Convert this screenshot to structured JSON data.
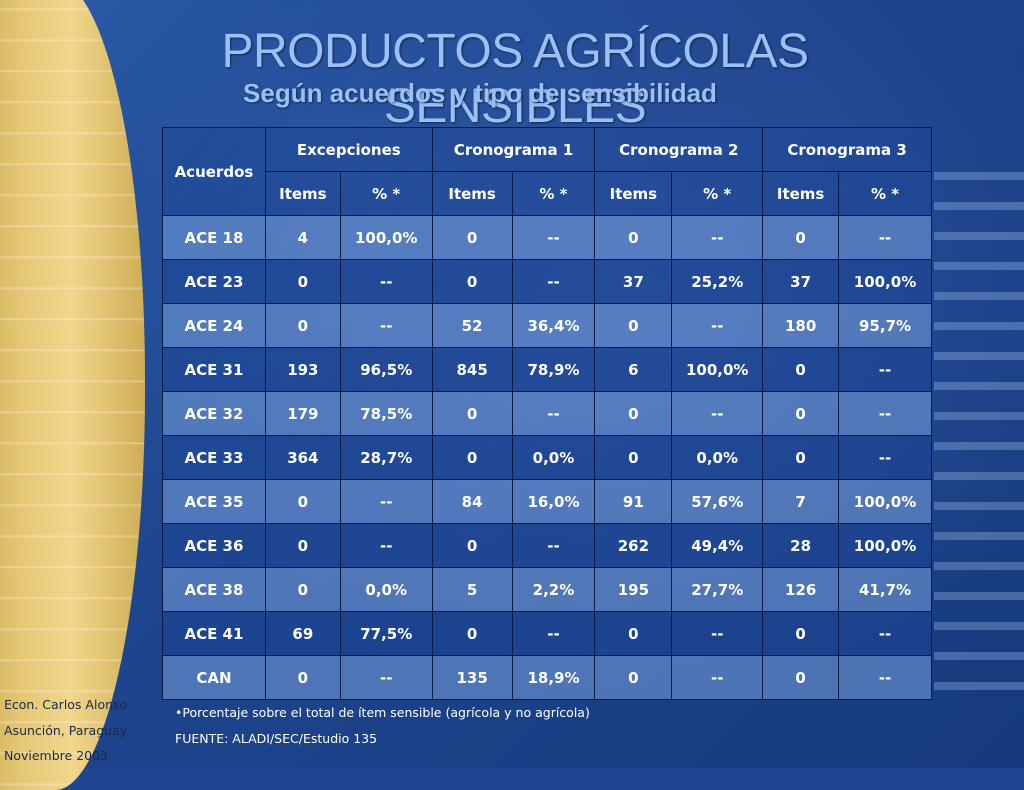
{
  "slide": {
    "title": "PRODUCTOS AGRÍCOLAS SENSIBLES",
    "subtitle": "Según acuerdos y tipo de sensibilidad"
  },
  "table": {
    "header_acuerdos": "Acuerdos",
    "groups": [
      "Excepciones",
      "Cronograma 1",
      "Cronograma 2",
      "Cronograma 3"
    ],
    "sub_items": "Items",
    "sub_pct": "% *",
    "rows": [
      [
        "ACE 18",
        "4",
        "100,0%",
        "0",
        "--",
        "0",
        "--",
        "0",
        "--"
      ],
      [
        "ACE 23",
        "0",
        "--",
        "0",
        "--",
        "37",
        "25,2%",
        "37",
        "100,0%"
      ],
      [
        "ACE 24",
        "0",
        "--",
        "52",
        "36,4%",
        "0",
        "--",
        "180",
        "95,7%"
      ],
      [
        "ACE 31",
        "193",
        "96,5%",
        "845",
        "78,9%",
        "6",
        "100,0%",
        "0",
        "--"
      ],
      [
        "ACE 32",
        "179",
        "78,5%",
        "0",
        "--",
        "0",
        "--",
        "0",
        "--"
      ],
      [
        "ACE 33",
        "364",
        "28,7%",
        "0",
        "0,0%",
        "0",
        "0,0%",
        "0",
        "--"
      ],
      [
        "ACE 35",
        "0",
        "--",
        "84",
        "16,0%",
        "91",
        "57,6%",
        "7",
        "100,0%"
      ],
      [
        "ACE 36",
        "0",
        "--",
        "0",
        "--",
        "262",
        "49,4%",
        "28",
        "100,0%"
      ],
      [
        "ACE 38",
        "0",
        "0,0%",
        "5",
        "2,2%",
        "195",
        "27,7%",
        "126",
        "41,7%"
      ],
      [
        "ACE 41",
        "69",
        "77,5%",
        "0",
        "--",
        "0",
        "--",
        "0",
        "--"
      ],
      [
        "CAN",
        "0",
        "--",
        "135",
        "18,9%",
        "0",
        "--",
        "0",
        "--"
      ]
    ]
  },
  "notes": {
    "footnote": "•Porcentaje sobre el total de ítem sensible  (agrícola y no agrícola)",
    "source": "FUENTE: ALADI/SEC/Estudio 135"
  },
  "author": {
    "name": "Econ. Carlos Alonso",
    "place": "Asunción, Paraguay",
    "date": "Noviembre 2003"
  }
}
